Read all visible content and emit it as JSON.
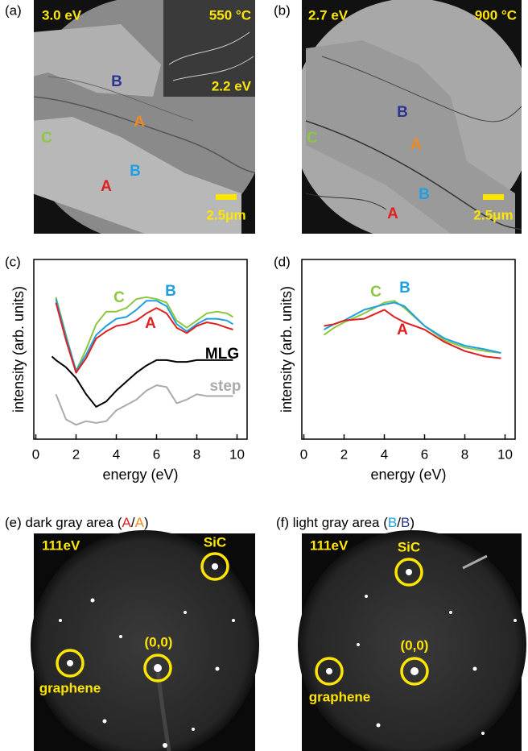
{
  "panels": {
    "a": {
      "label": "(a)",
      "energy": "3.0 eV",
      "temperature": "550 °C",
      "inset_energy": "2.2 eV",
      "scale_bar": "2.5μm",
      "regions": [
        "B",
        "A",
        "C",
        "B",
        "A"
      ]
    },
    "b": {
      "label": "(b)",
      "energy": "2.7 eV",
      "temperature": "900 °C",
      "scale_bar": "2.5μm",
      "regions": [
        "B",
        "C",
        "A",
        "B",
        "A"
      ]
    },
    "c": {
      "label": "(c)"
    },
    "d": {
      "label": "(d)"
    },
    "e": {
      "label": "(e)",
      "caption": "dark gray area (",
      "caption_first": "A",
      "caption_sep": "/",
      "caption_second": "A",
      "caption_end": ")",
      "energy": "111eV",
      "spots": [
        "SiC",
        "(0,0)",
        "graphene"
      ]
    },
    "f": {
      "label": "(f)",
      "caption": "light gray area (",
      "caption_first": "B",
      "caption_sep": "/",
      "caption_second": "B",
      "caption_end": ")",
      "energy": "111eV",
      "spots": [
        "SiC",
        "(0,0)",
        "graphene"
      ]
    }
  },
  "chart_data": [
    {
      "type": "line",
      "xlabel": "energy (eV)",
      "ylabel": "intensity (arb. units)",
      "xlim": [
        -0.1,
        10.5
      ],
      "ylim": [
        0,
        100
      ],
      "xticks": [
        0,
        2,
        4,
        6,
        8,
        10
      ],
      "x": [
        0.8,
        1,
        1.5,
        2,
        2.5,
        3,
        3.5,
        4,
        4.5,
        5,
        5.5,
        6,
        6.5,
        7,
        7.5,
        8,
        8.5,
        9,
        9.5,
        9.8
      ],
      "series": [
        {
          "name": "C",
          "color": "#8dc63f",
          "values": [
            null,
            79,
            58,
            38,
            50,
            64,
            71,
            71,
            73,
            78,
            79,
            78,
            76,
            66,
            62,
            66,
            70,
            71,
            70,
            68
          ]
        },
        {
          "name": "B",
          "color": "#1ea0e0",
          "values": [
            null,
            78,
            57,
            38,
            47,
            58,
            63,
            67,
            68,
            72,
            77,
            77,
            74,
            64,
            60,
            64,
            67,
            67,
            66,
            64
          ]
        },
        {
          "name": "A",
          "color": "#e02020",
          "values": [
            null,
            76,
            55,
            37,
            45,
            56,
            60,
            63,
            64,
            66,
            70,
            73,
            70,
            62,
            59,
            63,
            65,
            64,
            62,
            61
          ]
        },
        {
          "name": "MLG",
          "color": "#000000",
          "values": [
            46,
            44,
            40,
            34,
            25,
            18,
            21,
            27,
            32,
            37,
            41,
            44,
            44,
            43,
            43,
            44,
            44,
            44,
            44,
            44
          ]
        },
        {
          "name": "step",
          "color": "#aaaaaa",
          "values": [
            null,
            25,
            11,
            8,
            10,
            9,
            10,
            16,
            19,
            22,
            27,
            30,
            29,
            20,
            22,
            25,
            24,
            24,
            24,
            24
          ]
        }
      ]
    },
    {
      "type": "line",
      "xlabel": "energy (eV)",
      "ylabel": "intensity (arb. units)",
      "xlim": [
        -0.1,
        10.5
      ],
      "ylim": [
        0,
        100
      ],
      "xticks": [
        0,
        2,
        4,
        6,
        8,
        10
      ],
      "x": [
        1,
        1.5,
        2,
        3,
        4,
        4.5,
        5,
        6,
        7,
        8,
        9,
        9.8
      ],
      "series": [
        {
          "name": "C",
          "color": "#8dc63f",
          "values": [
            58,
            62,
            65,
            70,
            76,
            77,
            73,
            63,
            55,
            51,
            49,
            48
          ]
        },
        {
          "name": "B",
          "color": "#1ea0e0",
          "values": [
            61,
            64,
            66,
            72,
            75,
            76,
            74,
            63,
            56,
            52,
            50,
            48
          ]
        },
        {
          "name": "A",
          "color": "#e02020",
          "values": [
            63,
            64,
            66,
            67,
            72,
            68,
            65,
            61,
            54,
            49,
            46,
            45
          ]
        }
      ]
    }
  ]
}
